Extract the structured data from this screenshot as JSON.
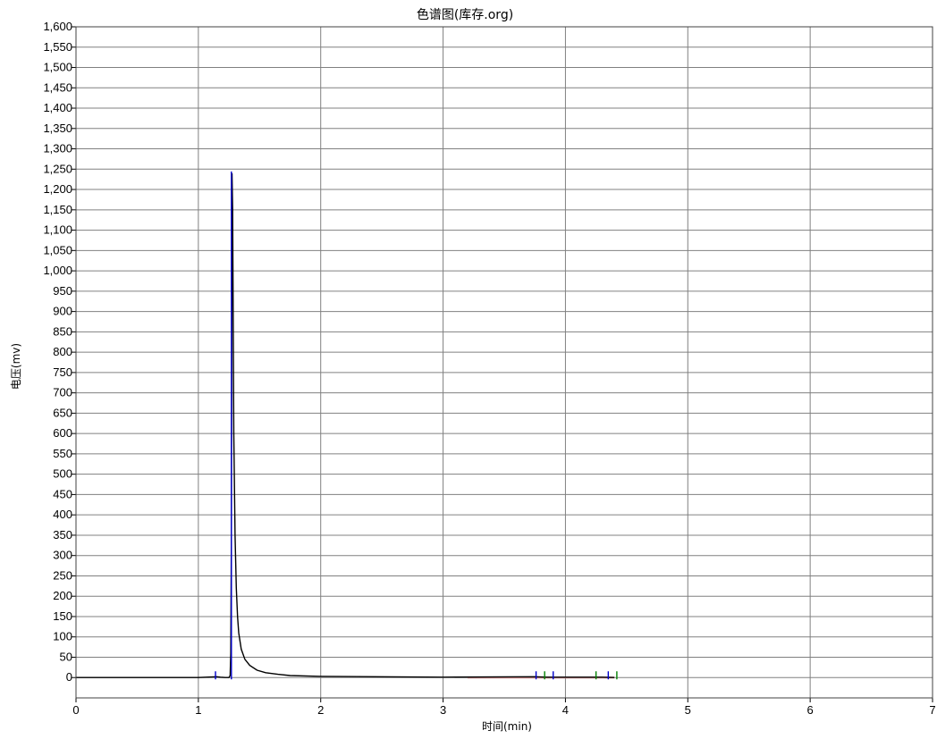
{
  "chart_data": {
    "type": "line",
    "title": "色谱图(库存.org)",
    "xlabel": "时间(min)",
    "ylabel": "电压(mv)",
    "xlim": [
      0,
      7
    ],
    "ylim": [
      -50,
      1600
    ],
    "x_ticks": [
      "0",
      "1",
      "2",
      "3",
      "4",
      "5",
      "6",
      "7"
    ],
    "y_ticks": [
      "0",
      "50",
      "100",
      "150",
      "200",
      "250",
      "300",
      "350",
      "400",
      "450",
      "500",
      "550",
      "600",
      "650",
      "700",
      "750",
      "800",
      "850",
      "900",
      "950",
      "1,000",
      "1,050",
      "1,100",
      "1,150",
      "1,200",
      "1,250",
      "1,300",
      "1,350",
      "1,400",
      "1,450",
      "1,500",
      "1,550",
      "1,600"
    ],
    "grid": true,
    "series": [
      {
        "x": [
          0,
          1.0,
          1.15,
          1.18,
          1.22,
          1.25,
          1.26,
          1.265,
          1.27,
          1.275,
          1.28,
          1.285,
          1.29,
          1.3,
          1.31,
          1.32,
          1.33,
          1.35,
          1.38,
          1.42,
          1.48,
          1.55,
          1.65,
          1.75,
          2.0,
          3.0,
          3.75,
          3.85,
          4.0,
          4.3,
          4.4
        ],
        "y": [
          0,
          0,
          2,
          1,
          0,
          0,
          5,
          60,
          350,
          1240,
          1150,
          850,
          600,
          350,
          220,
          150,
          110,
          70,
          45,
          30,
          18,
          12,
          8,
          5,
          3,
          1,
          2,
          1,
          1,
          1,
          0
        ]
      }
    ],
    "peak_markers": [
      {
        "x": 1.14,
        "color": "#0000cc"
      },
      {
        "x": 1.27,
        "color": "#0000cc"
      },
      {
        "x": 3.76,
        "color": "#0000cc"
      },
      {
        "x": 3.9,
        "color": "#0000cc"
      },
      {
        "x": 3.83,
        "color": "#008000"
      },
      {
        "x": 4.25,
        "color": "#008000"
      },
      {
        "x": 4.35,
        "color": "#0000cc"
      },
      {
        "x": 4.42,
        "color": "#008000"
      }
    ],
    "baseline": {
      "x": [
        3.2,
        4.4
      ],
      "color": "#cc8888"
    },
    "colors": {
      "trace": "#000000",
      "grid": "#808080",
      "marker": "#0000cc",
      "marker_alt": "#008000"
    }
  }
}
